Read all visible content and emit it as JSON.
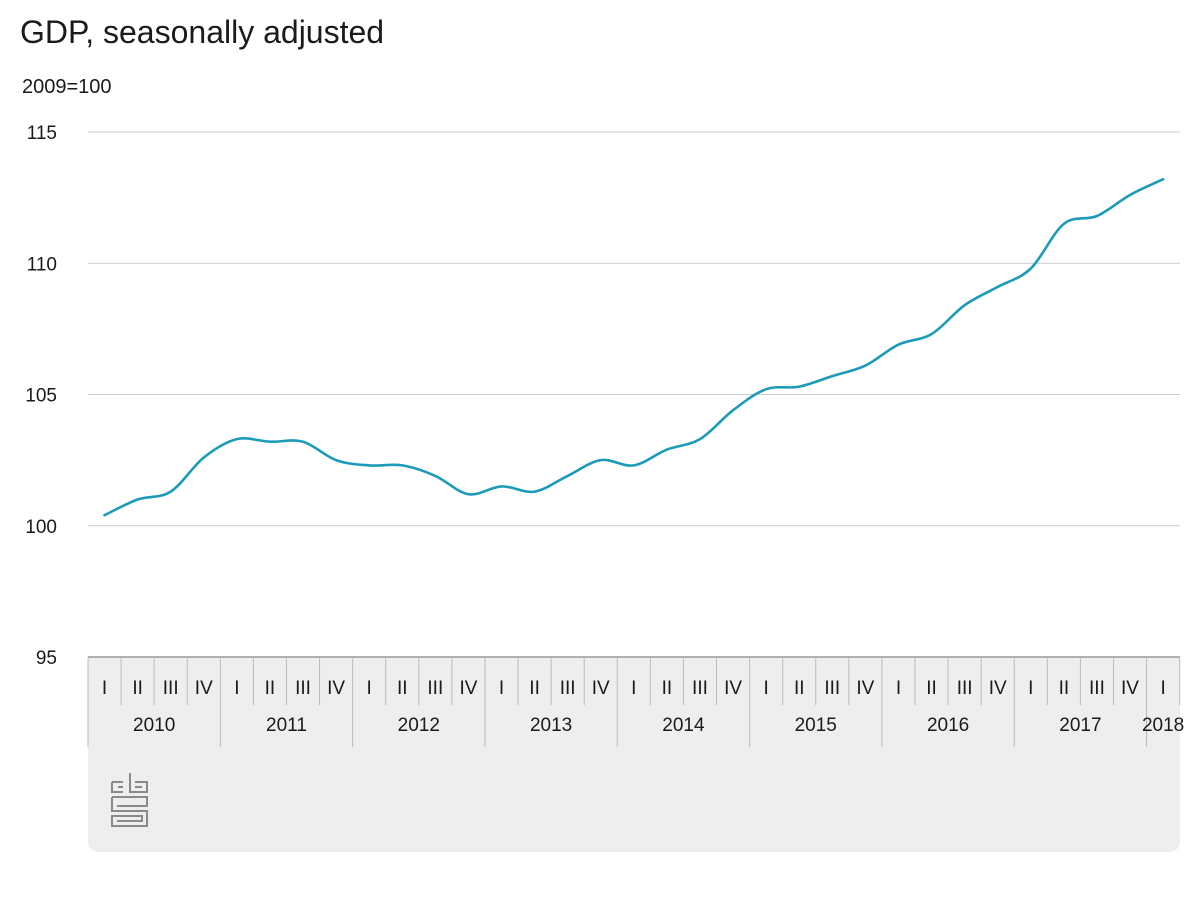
{
  "chart_data": {
    "type": "line",
    "title": "GDP, seasonally adjusted",
    "subtitle": "2009=100",
    "ylim": [
      95,
      115
    ],
    "yticks": [
      95,
      100,
      105,
      110,
      115
    ],
    "grid": true,
    "x_quarter_labels": [
      "I",
      "II",
      "III",
      "IV"
    ],
    "years": [
      "2010",
      "2011",
      "2012",
      "2013",
      "2014",
      "2015",
      "2016",
      "2017",
      "2018"
    ],
    "x": [
      "2010 I",
      "2010 II",
      "2010 III",
      "2010 IV",
      "2011 I",
      "2011 II",
      "2011 III",
      "2011 IV",
      "2012 I",
      "2012 II",
      "2012 III",
      "2012 IV",
      "2013 I",
      "2013 II",
      "2013 III",
      "2013 IV",
      "2014 I",
      "2014 II",
      "2014 III",
      "2014 IV",
      "2015 I",
      "2015 II",
      "2015 III",
      "2015 IV",
      "2016 I",
      "2016 II",
      "2016 III",
      "2016 IV",
      "2017 I",
      "2017 II",
      "2017 III",
      "2017 IV",
      "2018 I"
    ],
    "series": [
      {
        "color": "#1d9ab8",
        "values": [
          100.4,
          101.0,
          101.3,
          102.6,
          103.3,
          103.2,
          103.2,
          102.5,
          102.3,
          102.3,
          101.9,
          101.2,
          101.5,
          101.3,
          101.9,
          102.5,
          102.3,
          102.9,
          103.3,
          104.4,
          105.2,
          105.3,
          105.7,
          106.1,
          106.9,
          107.3,
          108.4,
          109.1,
          109.8,
          111.5,
          111.8,
          112.6,
          113.2
        ]
      }
    ],
    "colors": {
      "grid": "#cccccc",
      "axis_band": "#eeeeee",
      "axis_line": "#999999",
      "separator": "#bbbbbb",
      "logo": "#8a8a8a"
    }
  }
}
